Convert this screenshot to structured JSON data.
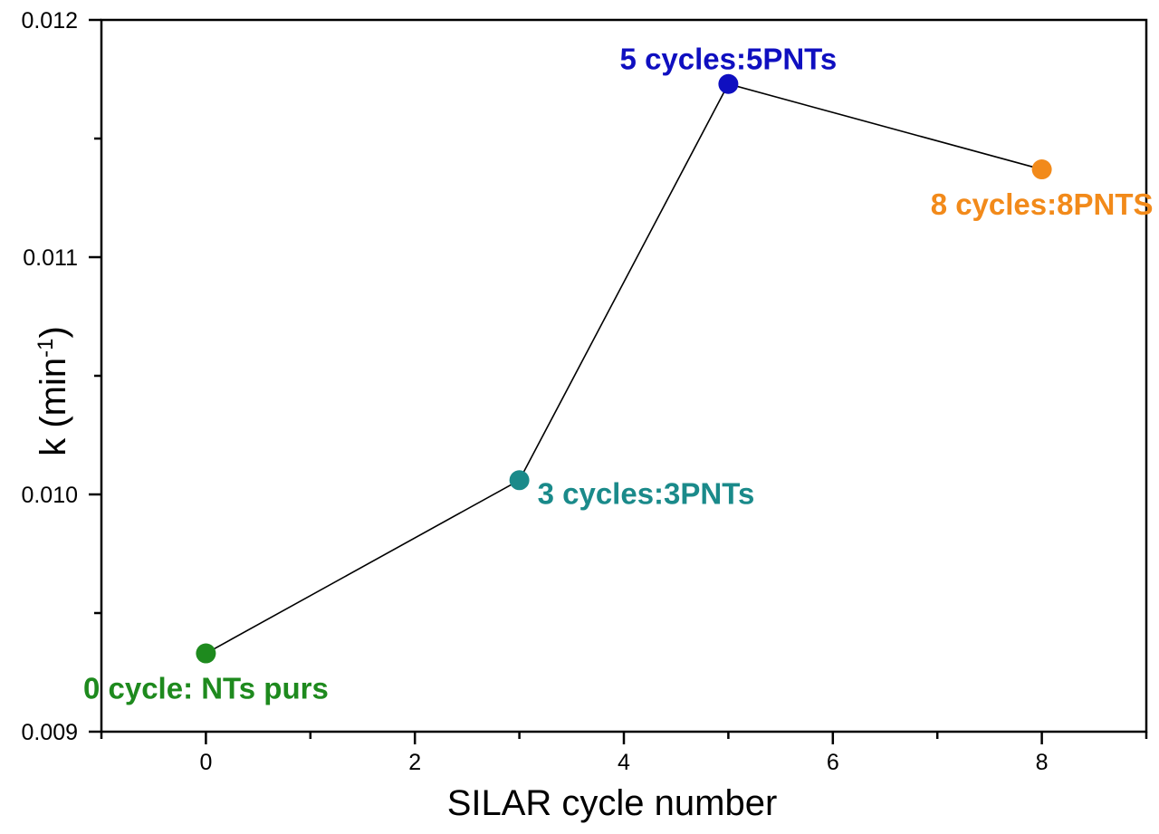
{
  "chart_data": {
    "type": "line",
    "title": "",
    "xlabel": "SILAR cycle number",
    "ylabel_main": "k (min",
    "ylabel_sup": "-1",
    "ylabel_end": ")",
    "xlim": [
      -1,
      9
    ],
    "ylim": [
      0.009,
      0.012
    ],
    "xticks": [
      0,
      2,
      4,
      6,
      8
    ],
    "xtick_labels": [
      "0",
      "2",
      "4",
      "6",
      "8"
    ],
    "xminor": [
      -1,
      1,
      3,
      5,
      7,
      9
    ],
    "yticks": [
      0.009,
      0.01,
      0.011,
      0.012
    ],
    "ytick_labels": [
      "0.009",
      "0.010",
      "0.011",
      "0.012"
    ],
    "yminor": [
      0.0095,
      0.0105,
      0.0115
    ],
    "grid": false,
    "line_color": "#000000",
    "points": [
      {
        "x": 0,
        "y": 0.00933,
        "label": "0 cycle: NTs purs",
        "color": "#1e8a1e",
        "label_pos": "below"
      },
      {
        "x": 3,
        "y": 0.01006,
        "label": "3 cycles:3PNTs",
        "color": "#1a8a8a",
        "label_pos": "right"
      },
      {
        "x": 5,
        "y": 0.01173,
        "label": "5 cycles:5PNTs",
        "color": "#0f0fc0",
        "label_pos": "above"
      },
      {
        "x": 8,
        "y": 0.01137,
        "label": "8 cycles:8PNTS",
        "color": "#f28a1a",
        "label_pos": "below"
      }
    ]
  }
}
